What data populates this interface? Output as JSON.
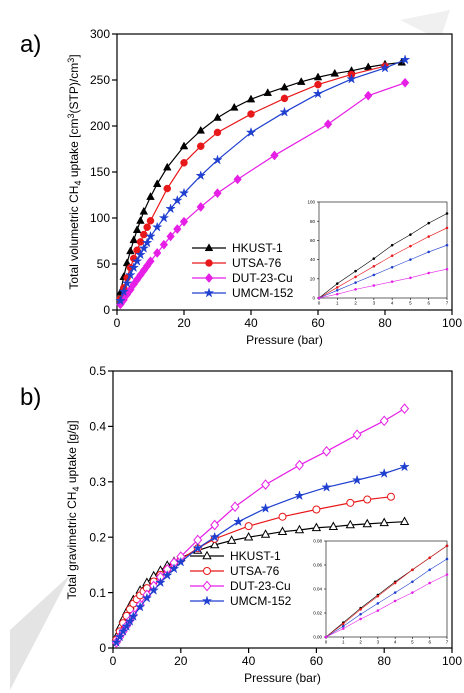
{
  "chart_data": [
    {
      "type": "line",
      "label": "a)",
      "xlabel": "Pressure (bar)",
      "ylabel": [
        "Total volumetric CH",
        "4",
        " uptake [cm",
        "3",
        "(STP)/cm",
        "3",
        "]"
      ],
      "xlim": [
        0,
        100
      ],
      "xticks": [
        0,
        20,
        40,
        60,
        80,
        100
      ],
      "ylim": [
        0,
        300
      ],
      "yticks": [
        0,
        50,
        100,
        150,
        200,
        250,
        300
      ],
      "legend": "lower left",
      "series": [
        {
          "name": "HKUST-1",
          "color": "#000000",
          "marker": "triangle",
          "filled": true,
          "x": [
            1,
            2,
            3,
            4,
            5,
            6,
            7,
            8,
            10,
            12,
            15,
            20,
            25,
            30,
            35,
            40,
            45,
            50,
            55,
            60,
            65,
            70,
            75,
            80,
            85
          ],
          "values": [
            19,
            36,
            51,
            64,
            76,
            87,
            97,
            107,
            123,
            137,
            155,
            178,
            195,
            209,
            220,
            229,
            236,
            242,
            248,
            253,
            257,
            260,
            264,
            267,
            269
          ]
        },
        {
          "name": "UTSA-76",
          "color": "#e8171a",
          "marker": "circle",
          "filled": true,
          "x": [
            1,
            2,
            3,
            4,
            5,
            6,
            7,
            8,
            9,
            10,
            15,
            20,
            25,
            30,
            40,
            50,
            60,
            70,
            80
          ],
          "values": [
            12,
            24,
            35,
            46,
            56,
            65,
            74,
            82,
            90,
            97,
            132,
            160,
            178,
            193,
            213,
            230,
            245,
            256,
            265
          ]
        },
        {
          "name": "DUT-23-Cu",
          "color": "#e61ee6",
          "marker": "diamond",
          "filled": true,
          "x": [
            1,
            2,
            3,
            4,
            5,
            6,
            7,
            8,
            9,
            10,
            12,
            14,
            16,
            18,
            20,
            25,
            30,
            36,
            47,
            63,
            75,
            86
          ],
          "values": [
            6,
            11,
            17,
            22,
            28,
            33,
            38,
            43,
            48,
            53,
            62,
            71,
            80,
            88,
            96,
            112,
            127,
            142,
            168,
            202,
            233,
            247
          ]
        },
        {
          "name": "UMCM-152",
          "color": "#1f3fd0",
          "marker": "star",
          "filled": true,
          "x": [
            1,
            2,
            3,
            4,
            5,
            6,
            7,
            8,
            9,
            10,
            12,
            14,
            16,
            18,
            20,
            25,
            30,
            40,
            50,
            60,
            70,
            80,
            86
          ],
          "values": [
            10,
            20,
            29,
            38,
            46,
            53,
            60,
            67,
            73,
            80,
            90,
            100,
            110,
            119,
            127,
            146,
            163,
            193,
            215,
            235,
            251,
            263,
            272
          ]
        }
      ]
    },
    {
      "type": "line",
      "xlim": [
        0,
        7
      ],
      "xticks": [
        0,
        1,
        2,
        3,
        4,
        5,
        6,
        7
      ],
      "ylim": [
        0,
        100
      ],
      "yticks": [
        0,
        20,
        40,
        60,
        80,
        100
      ],
      "series": [
        {
          "color": "#000000",
          "marker": "circle",
          "x": [
            0,
            1,
            2,
            3,
            4,
            5,
            6,
            7
          ],
          "values": [
            0,
            15,
            28,
            41,
            55,
            66,
            78,
            88
          ]
        },
        {
          "color": "#e8171a",
          "marker": "circle",
          "x": [
            0,
            1,
            2,
            3,
            4,
            5,
            6,
            7
          ],
          "values": [
            0,
            11,
            22,
            33,
            44,
            54,
            64,
            73
          ]
        },
        {
          "color": "#1f3fd0",
          "marker": "circle",
          "x": [
            0,
            1,
            2,
            3,
            4,
            5,
            6,
            7
          ],
          "values": [
            0,
            8,
            16,
            24,
            32,
            40,
            48,
            55
          ]
        },
        {
          "color": "#e61ee6",
          "marker": "circle",
          "x": [
            0,
            1,
            2,
            3,
            4,
            5,
            6,
            7
          ],
          "values": [
            0,
            4,
            9,
            13,
            17,
            21,
            26,
            30
          ]
        }
      ]
    },
    {
      "type": "line",
      "label": "b)",
      "xlabel": "Pressure (bar)",
      "ylabel": [
        "Total gravimetric CH",
        "4",
        " uptake [g/g]"
      ],
      "xlim": [
        0,
        100
      ],
      "xticks": [
        0,
        20,
        40,
        60,
        80,
        100
      ],
      "ylim": [
        0,
        0.5
      ],
      "yticks": [
        0,
        0.1,
        0.2,
        0.3,
        0.4,
        0.5
      ],
      "legend": "lower left",
      "series": [
        {
          "name": "HKUST-1",
          "color": "#000000",
          "marker": "triangle",
          "filled": false,
          "x": [
            1,
            2,
            3,
            4,
            5,
            6,
            8,
            10,
            12,
            14,
            16,
            18,
            20,
            25,
            30,
            35,
            40,
            45,
            50,
            55,
            60,
            65,
            70,
            75,
            80,
            86
          ],
          "values": [
            0.02,
            0.037,
            0.052,
            0.065,
            0.076,
            0.087,
            0.104,
            0.118,
            0.13,
            0.14,
            0.149,
            0.156,
            0.163,
            0.176,
            0.186,
            0.194,
            0.2,
            0.205,
            0.21,
            0.213,
            0.217,
            0.219,
            0.222,
            0.224,
            0.226,
            0.228
          ]
        },
        {
          "name": "UTSA-76",
          "color": "#e8171a",
          "marker": "circle",
          "filled": false,
          "x": [
            1,
            2,
            3,
            4,
            5,
            6,
            7,
            8,
            9,
            10,
            12,
            14,
            16,
            18,
            20,
            25,
            30,
            40,
            50,
            60,
            70,
            75,
            82
          ],
          "values": [
            0.015,
            0.03,
            0.045,
            0.058,
            0.07,
            0.08,
            0.088,
            0.095,
            0.102,
            0.108,
            0.12,
            0.132,
            0.142,
            0.151,
            0.16,
            0.18,
            0.197,
            0.22,
            0.237,
            0.25,
            0.262,
            0.268,
            0.273
          ]
        },
        {
          "name": "DUT-23-Cu",
          "color": "#e61ee6",
          "marker": "diamond",
          "filled": false,
          "x": [
            1,
            2,
            3,
            4,
            5,
            6,
            8,
            10,
            12,
            14,
            16,
            18,
            20,
            25,
            30,
            36,
            45,
            55,
            63,
            72,
            80,
            86
          ],
          "values": [
            0.01,
            0.02,
            0.03,
            0.04,
            0.05,
            0.06,
            0.078,
            0.096,
            0.112,
            0.128,
            0.142,
            0.154,
            0.165,
            0.195,
            0.222,
            0.255,
            0.295,
            0.33,
            0.355,
            0.385,
            0.41,
            0.432
          ]
        },
        {
          "name": "UMCM-152",
          "color": "#1f3fd0",
          "marker": "star",
          "filled": true,
          "x": [
            1,
            2,
            3,
            4,
            5,
            6,
            8,
            10,
            12,
            14,
            16,
            18,
            20,
            25,
            30,
            37,
            45,
            55,
            63,
            72,
            80,
            86
          ],
          "values": [
            0.01,
            0.02,
            0.03,
            0.039,
            0.048,
            0.057,
            0.074,
            0.09,
            0.104,
            0.118,
            0.131,
            0.143,
            0.155,
            0.18,
            0.2,
            0.228,
            0.252,
            0.275,
            0.29,
            0.303,
            0.315,
            0.327
          ]
        }
      ]
    },
    {
      "type": "line",
      "xlim": [
        0,
        7
      ],
      "xticks": [
        0,
        1,
        2,
        3,
        4,
        5,
        6,
        7
      ],
      "ylim": [
        0,
        0.08
      ],
      "yticks": [
        {
          "value": 0,
          "label": "0.00"
        },
        {
          "value": 0.02,
          "label": "0.02"
        },
        {
          "value": 0.04,
          "label": "0.04"
        },
        {
          "value": 0.06,
          "label": "0.06"
        },
        {
          "value": 0.08,
          "label": "0.08"
        }
      ],
      "series": [
        {
          "color": "#000000",
          "marker": "circle",
          "x": [
            0,
            1,
            2,
            3,
            4,
            5,
            6,
            7
          ],
          "values": [
            0,
            0.012,
            0.024,
            0.035,
            0.046,
            0.056,
            0.066,
            0.076
          ]
        },
        {
          "color": "#e8171a",
          "marker": "circle",
          "x": [
            0,
            1,
            2,
            3,
            4,
            5,
            6,
            7
          ],
          "values": [
            0,
            0.011,
            0.023,
            0.034,
            0.045,
            0.056,
            0.066,
            0.076
          ]
        },
        {
          "color": "#1f3fd0",
          "marker": "circle",
          "x": [
            0,
            1,
            2,
            3,
            4,
            5,
            6,
            7
          ],
          "values": [
            0,
            0.009,
            0.019,
            0.028,
            0.037,
            0.046,
            0.056,
            0.065
          ]
        },
        {
          "color": "#e61ee6",
          "marker": "circle",
          "x": [
            0,
            1,
            2,
            3,
            4,
            5,
            6,
            7
          ],
          "values": [
            0,
            0.007,
            0.015,
            0.022,
            0.03,
            0.037,
            0.045,
            0.052
          ]
        }
      ]
    }
  ]
}
